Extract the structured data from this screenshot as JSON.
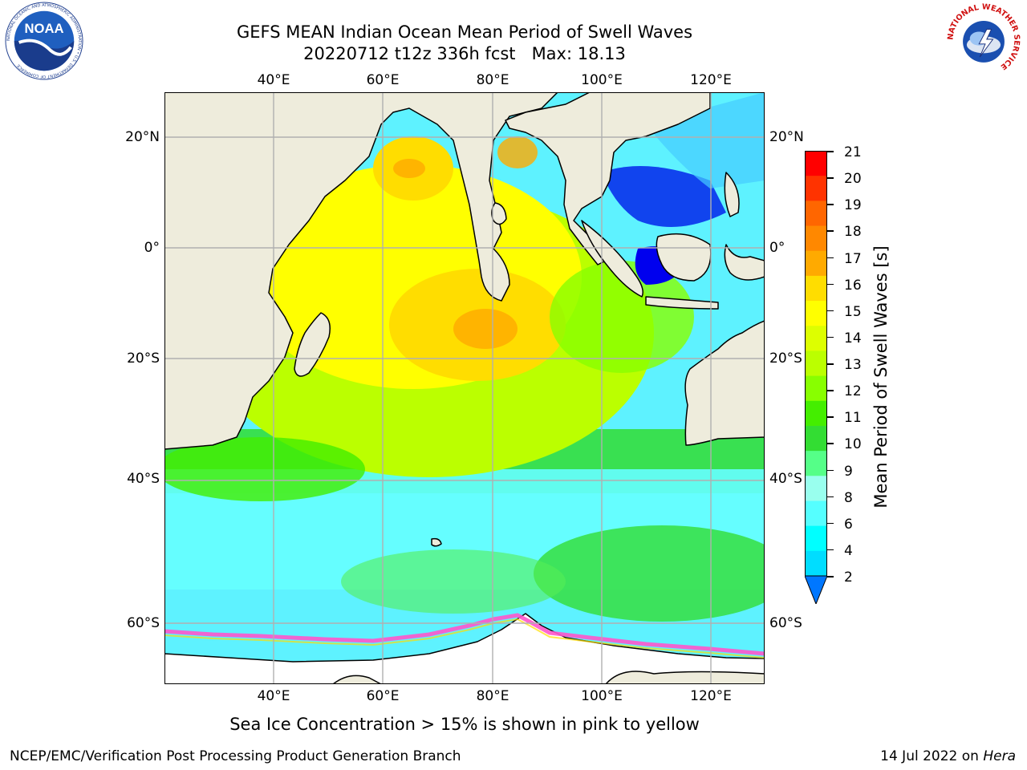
{
  "header": {
    "title": "GEFS MEAN Indian Ocean Mean Period of Swell Waves",
    "subtitle": "20220712 t12z 336h fcst   Max: 18.13"
  },
  "logos": {
    "noaa_text": "NOAA",
    "noaa_ring_text": "NATIONAL OCEANIC AND ATMOSPHERIC ADMINISTRATION • U.S. DEPARTMENT OF COMMERCE",
    "nws_ring_text": "NATIONAL WEATHER SERVICE"
  },
  "map": {
    "lon_ticks": [
      "40°E",
      "60°E",
      "80°E",
      "100°E",
      "120°E"
    ],
    "lat_ticks": [
      "20°N",
      "0°",
      "20°S",
      "40°S",
      "60°S"
    ],
    "colors": {
      "land": "#eeecdc",
      "sea_ice": "#ffffff",
      "coastline": "#000000",
      "gridline": "#b0b0b0"
    }
  },
  "colorbar": {
    "title": "Mean Period of Swell Waves [s]",
    "labels": [
      "21",
      "20",
      "19",
      "18",
      "17",
      "16",
      "15",
      "14",
      "13",
      "12",
      "11",
      "10",
      "9",
      "8",
      "6",
      "4",
      "2"
    ],
    "colors": [
      "#ff0000",
      "#ff3300",
      "#ff6600",
      "#ff8800",
      "#ffaa00",
      "#ffdd00",
      "#ffff00",
      "#ddff00",
      "#bbff00",
      "#88ff00",
      "#44ee00",
      "#33dd33",
      "#55ff88",
      "#99ffee",
      "#55ffff",
      "#00ffff",
      "#00ddff",
      "#0077ff"
    ]
  },
  "notes": {
    "sea_ice": "Sea Ice Concentration > 15% is shown in pink to yellow",
    "footer_left": "NCEP/EMC/Verification Post Processing Product Generation Branch",
    "footer_date": "14 Jul 2022 on ",
    "footer_machine": "Hera"
  }
}
